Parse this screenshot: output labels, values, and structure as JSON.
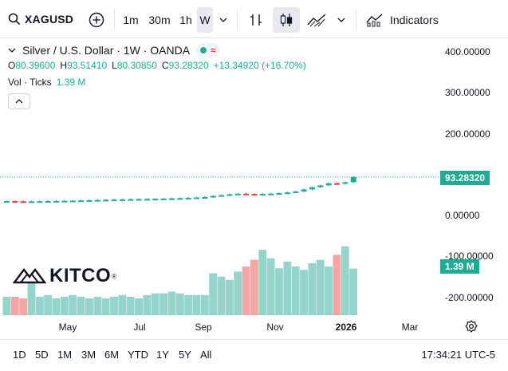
{
  "toolbar": {
    "symbol": "XAGUSD",
    "intervals": [
      "1m",
      "30m",
      "1h",
      "W"
    ],
    "active_interval": "W",
    "indicators_label": "Indicators"
  },
  "legend": {
    "title": "Silver / U.S. Dollar · 1W · OANDA",
    "wave_glyph": "≈",
    "open_label": "O",
    "open_value": "80.39600",
    "high_label": "H",
    "high_value": "93.51410",
    "low_label": "L",
    "low_value": "80.30850",
    "close_label": "C",
    "close_value": "93.28320",
    "change": "+13.34920 (+16.70%)",
    "volume_label": "Vol · Ticks",
    "volume_value": "1.39 M"
  },
  "price_axis": {
    "labels": [
      "400.00000",
      "300.00000",
      "200.00000",
      "0.00000",
      "-100.00000",
      "-200.00000"
    ],
    "current_price_tag": "93.28320",
    "current_volume_tag": "1.39 M"
  },
  "time_axis": {
    "labels": [
      "May",
      "Jul",
      "Sep",
      "Nov",
      "2026",
      "Mar"
    ]
  },
  "watermark": {
    "brand": "KITCO",
    "mark": "®"
  },
  "bottom_bar": {
    "ranges": [
      "1D",
      "5D",
      "1M",
      "3M",
      "6M",
      "YTD",
      "1Y",
      "5Y",
      "All"
    ],
    "clock": "17:34:21 UTC-5"
  },
  "colors": {
    "up": "#22ab94",
    "down": "#f23645",
    "volume_up": "#94d4cb",
    "volume_down": "#f4a5a5"
  },
  "chart_data": {
    "type": "candlestick",
    "interval": "1W",
    "note_series": [
      "price",
      "volume"
    ],
    "price": {
      "open": [
        33.0,
        33.4,
        33.1,
        32.8,
        32.9,
        33.3,
        33.6,
        33.9,
        34.3,
        34.7,
        35.2,
        35.8,
        36.4,
        36.9,
        37.4,
        37.9,
        38.3,
        38.6,
        38.9,
        39.3,
        39.8,
        40.4,
        41.0,
        41.7,
        42.6,
        43.6,
        46.5,
        48.3,
        50.5,
        52.0,
        51.2,
        50.8,
        51.4,
        52.1,
        53.2,
        55.0,
        57.5,
        62.5,
        68.0,
        72.5,
        78.0,
        76.5,
        80.4
      ],
      "close": [
        33.4,
        33.1,
        32.8,
        32.9,
        33.3,
        33.6,
        33.9,
        34.3,
        34.7,
        35.2,
        35.8,
        36.4,
        36.9,
        37.4,
        37.9,
        38.3,
        38.6,
        38.9,
        39.3,
        39.8,
        40.4,
        41.0,
        41.7,
        42.6,
        43.6,
        46.5,
        48.3,
        50.5,
        52.0,
        51.2,
        50.8,
        51.4,
        52.1,
        53.2,
        55.0,
        57.5,
        62.5,
        68.0,
        72.5,
        78.0,
        76.5,
        80.4,
        93.28
      ]
    },
    "volume_ylim_note": "relative",
    "volume": [
      0.55,
      0.55,
      0.5,
      0.95,
      0.55,
      0.6,
      0.5,
      0.55,
      0.6,
      0.55,
      0.5,
      0.55,
      0.5,
      0.55,
      0.6,
      0.55,
      0.5,
      0.6,
      0.65,
      0.65,
      0.7,
      0.65,
      0.6,
      0.6,
      0.6,
      1.25,
      1.15,
      1.05,
      1.3,
      1.45,
      1.65,
      1.95,
      1.7,
      1.4,
      1.6,
      1.45,
      1.35,
      1.55,
      1.65,
      1.45,
      1.8,
      2.05,
      1.39
    ],
    "xlabels": [
      "May",
      "Jul",
      "Sep",
      "Nov",
      "2026",
      "Mar"
    ],
    "ylabels": [
      "400.00000",
      "300.00000",
      "200.00000",
      "0.00000",
      "-100.00000",
      "-200.00000"
    ],
    "grid": false,
    "legend": "top-left"
  }
}
